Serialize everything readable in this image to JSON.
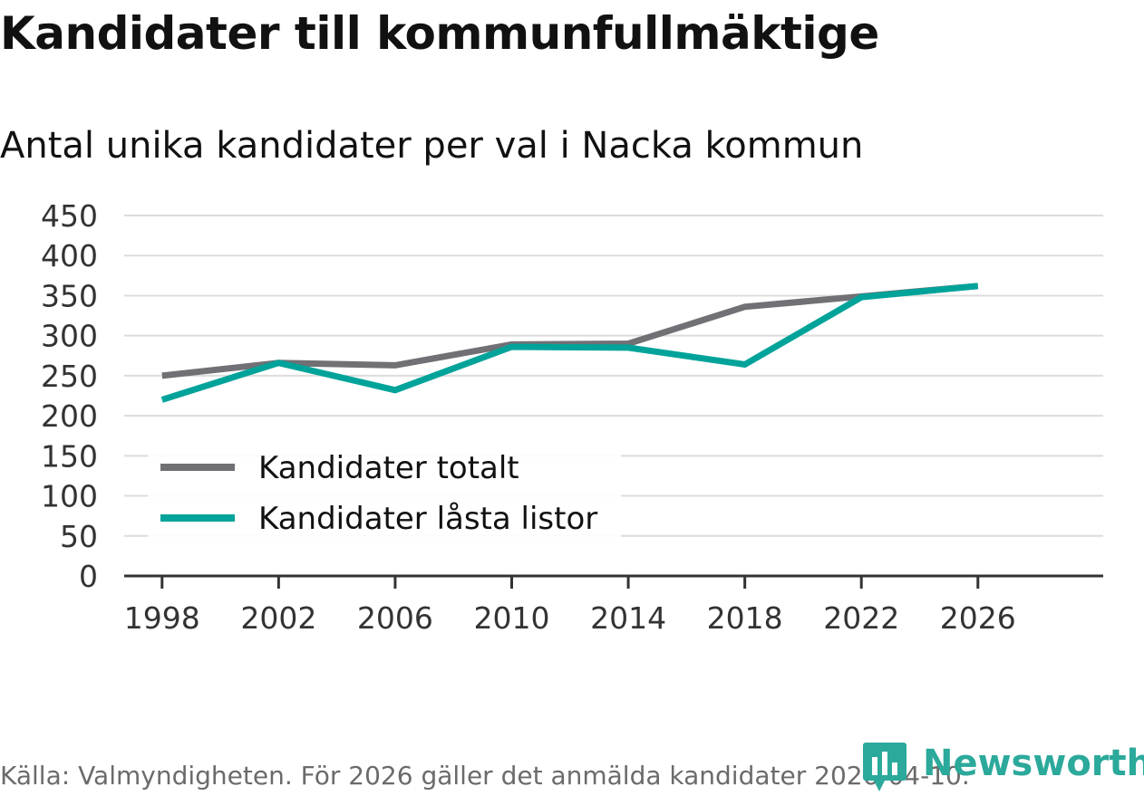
{
  "chart_data": {
    "type": "line",
    "title": "Kandidater till kommunfullmäktige",
    "subtitle": "Antal unika kandidater per val i Nacka kommun",
    "xlabel": "",
    "ylabel": "",
    "x": [
      1998,
      2002,
      2006,
      2010,
      2014,
      2018,
      2022,
      2026
    ],
    "xticks": [
      "1998",
      "2002",
      "2006",
      "2010",
      "2014",
      "2018",
      "2022",
      "2026"
    ],
    "yticks": [
      "0",
      "50",
      "100",
      "150",
      "200",
      "250",
      "300",
      "350",
      "400",
      "450"
    ],
    "ylim": [
      0,
      450
    ],
    "xlim": [
      1996.7,
      2030.3
    ],
    "grid": true,
    "legend_position": "bottom-left",
    "series": [
      {
        "name": "Kandidater totalt",
        "color": "#717075",
        "values": [
          250,
          266,
          263,
          289,
          290,
          336,
          349,
          362
        ]
      },
      {
        "name": "Kandidater låsta listor",
        "color": "#00a39a",
        "values": [
          220,
          266,
          232,
          286,
          285,
          264,
          348,
          362
        ]
      }
    ]
  },
  "footer": {
    "source": "Källa: Valmyndigheten. För 2026 gäller det anmälda kandidater 2026-04-10.",
    "brand": "Newsworthy",
    "brand_color": "#2ba99b"
  }
}
